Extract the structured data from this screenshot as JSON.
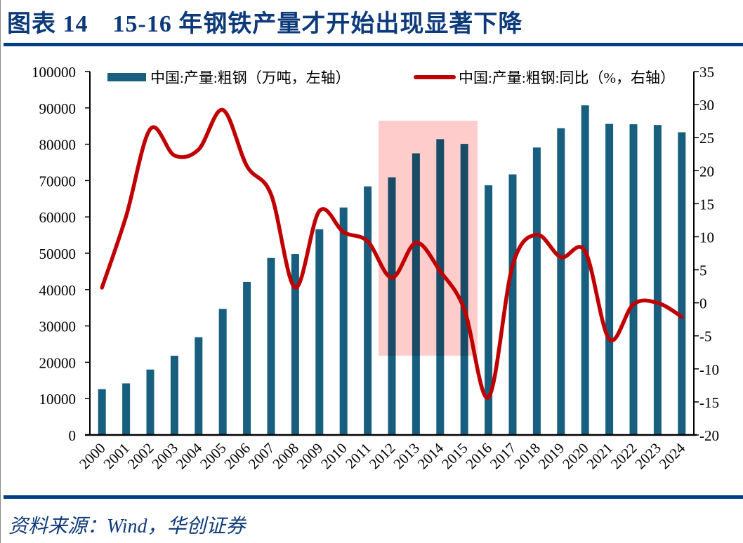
{
  "title": "图表 14　15-16 年钢铁产量才开始出现显著下降",
  "source": "资料来源：Wind，华创证券",
  "colors": {
    "bar": "#175e7f",
    "line": "#c00000",
    "highlight": "#ffcccc",
    "title": "#0d3a7a",
    "rule": "#003f87"
  },
  "chart_data": {
    "type": "bar+line",
    "categories": [
      "2000",
      "2001",
      "2002",
      "2003",
      "2004",
      "2005",
      "2006",
      "2007",
      "2008",
      "2009",
      "2010",
      "2011",
      "2012",
      "2013",
      "2014",
      "2015",
      "2016",
      "2017",
      "2018",
      "2019",
      "2020",
      "2021",
      "2022",
      "2023",
      "2024"
    ],
    "series": [
      {
        "name": "中国:产量:粗钢（万吨，左轴）",
        "type": "bar",
        "axis": "left",
        "values": [
          12600,
          14200,
          18000,
          21800,
          26900,
          34700,
          42100,
          48700,
          49800,
          56600,
          62600,
          68400,
          70900,
          77500,
          81400,
          80100,
          68700,
          71700,
          79100,
          84400,
          90700,
          85600,
          85500,
          85300,
          83300
        ]
      },
      {
        "name": "中国:产量:粗钢:同比（%，右轴）",
        "type": "line",
        "axis": "right",
        "smooth": true,
        "values": [
          2.3,
          13.1,
          26.3,
          22.3,
          23.2,
          29.2,
          20.7,
          16.4,
          2.3,
          13.9,
          10.7,
          9.3,
          3.8,
          9.1,
          4.8,
          -1.0,
          -14.3,
          5.7,
          10.3,
          6.9,
          7.8,
          -5.5,
          -0.2,
          0.0,
          -2.1
        ]
      }
    ],
    "left_axis": {
      "range": [
        0,
        100000
      ],
      "ticks": [
        "0",
        "10000",
        "20000",
        "30000",
        "40000",
        "50000",
        "60000",
        "70000",
        "80000",
        "90000",
        "100000"
      ]
    },
    "right_axis": {
      "range": [
        -20,
        35
      ],
      "ticks": [
        "-20",
        "-15",
        "-10",
        "-5",
        "0",
        "5",
        "10",
        "15",
        "20",
        "25",
        "30",
        "35"
      ]
    },
    "highlight": {
      "from": "2012",
      "to": "2015"
    },
    "grid": false,
    "legend": "top"
  }
}
